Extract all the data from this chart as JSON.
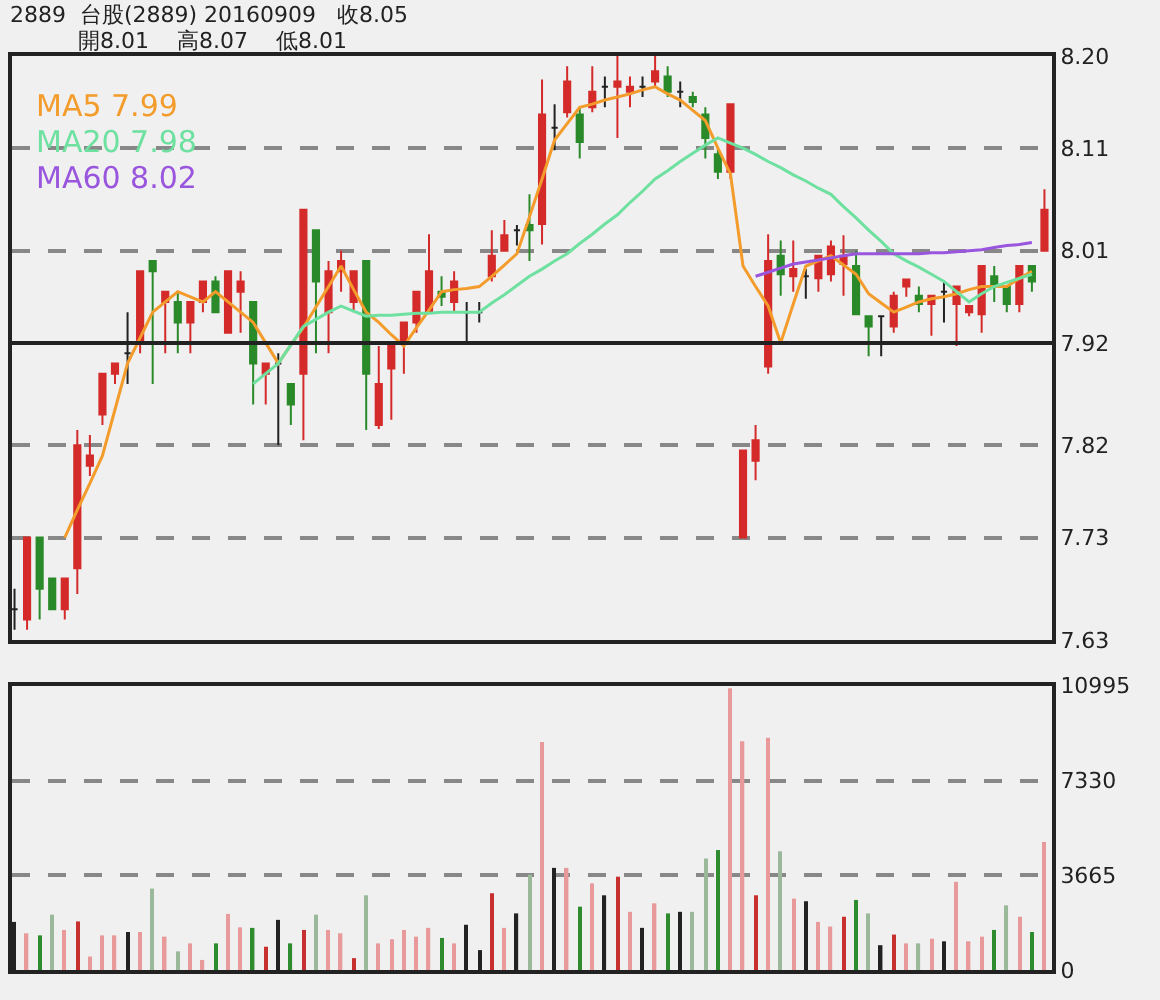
{
  "chart_data": [
    {
      "type": "candlestick",
      "title": "2889  台股(2889) 20160909   收8.05",
      "subtitle": "開8.01    高8.07    低8.01",
      "categories": [
        null,
        null,
        null,
        null,
        null,
        null,
        null,
        null,
        null,
        null,
        null,
        null,
        null,
        null,
        null,
        null,
        null,
        null,
        null,
        null,
        null,
        null,
        null,
        null,
        null,
        null,
        null,
        null,
        null,
        null,
        null,
        null,
        null,
        null,
        null,
        null,
        null,
        null,
        null,
        null,
        null,
        null,
        null,
        null,
        null,
        null,
        null,
        null,
        null,
        null,
        null,
        null,
        null,
        null,
        null,
        null,
        null,
        null,
        null,
        null,
        null,
        null,
        null,
        null,
        null,
        null,
        null,
        null,
        null,
        null,
        null,
        null,
        null,
        null,
        null,
        null,
        null,
        null,
        null,
        null,
        null,
        null,
        null
      ],
      "ohlc": [
        [
          7.66,
          7.68,
          7.64,
          7.66
        ],
        [
          7.65,
          7.73,
          7.64,
          7.73
        ],
        [
          7.73,
          7.73,
          7.65,
          7.68
        ],
        [
          7.69,
          7.69,
          7.66,
          7.66
        ],
        [
          7.66,
          7.69,
          7.65,
          7.69
        ],
        [
          7.7,
          7.835,
          7.675,
          7.82
        ],
        [
          7.8,
          7.83,
          7.79,
          7.81
        ],
        [
          7.85,
          7.89,
          7.84,
          7.89
        ],
        [
          7.89,
          7.9,
          7.88,
          7.9
        ],
        [
          7.91,
          7.95,
          7.88,
          7.91
        ],
        [
          7.92,
          7.99,
          7.91,
          7.99
        ],
        [
          8.0,
          8.0,
          7.88,
          7.99
        ],
        [
          7.96,
          7.97,
          7.91,
          7.97
        ],
        [
          7.96,
          7.97,
          7.91,
          7.94
        ],
        [
          7.94,
          7.96,
          7.91,
          7.96
        ],
        [
          7.96,
          7.98,
          7.95,
          7.98
        ],
        [
          7.98,
          7.985,
          7.95,
          7.95
        ],
        [
          7.93,
          7.99,
          7.93,
          7.99
        ],
        [
          7.97,
          7.99,
          7.93,
          7.98
        ],
        [
          7.96,
          7.96,
          7.86,
          7.9
        ],
        [
          7.89,
          7.9,
          7.86,
          7.9
        ],
        [
          7.9,
          7.91,
          7.82,
          7.9
        ],
        [
          7.88,
          7.88,
          7.84,
          7.86
        ],
        [
          7.89,
          8.05,
          7.825,
          8.05
        ],
        [
          8.03,
          8.03,
          7.91,
          7.98
        ],
        [
          7.95,
          8.0,
          7.91,
          7.99
        ],
        [
          7.99,
          8.01,
          7.97,
          8.0
        ],
        [
          7.96,
          7.99,
          7.95,
          7.99
        ],
        [
          8.0,
          8.0,
          7.835,
          7.89
        ],
        [
          7.84,
          7.917,
          7.836,
          7.88
        ],
        [
          7.895,
          7.92,
          7.845,
          7.917
        ],
        [
          7.92,
          7.94,
          7.89,
          7.94
        ],
        [
          7.94,
          7.97,
          7.93,
          7.97
        ],
        [
          7.95,
          8.026,
          7.95,
          7.99
        ],
        [
          7.97,
          7.985,
          7.956,
          7.965
        ],
        [
          7.96,
          7.99,
          7.95,
          7.98
        ],
        [
          7.95,
          7.96,
          7.92,
          7.95
        ],
        [
          7.95,
          7.96,
          7.94,
          7.95
        ],
        [
          7.985,
          8.03,
          7.98,
          8.005
        ],
        [
          8.01,
          8.04,
          8.01,
          8.025
        ],
        [
          8.03,
          8.035,
          8.015,
          8.03
        ],
        [
          8.035,
          8.065,
          8.0,
          8.03
        ],
        [
          8.036,
          8.177,
          8.016,
          8.143
        ],
        [
          8.13,
          8.153,
          8.108,
          8.13
        ],
        [
          8.145,
          8.19,
          8.14,
          8.175
        ],
        [
          8.143,
          8.15,
          8.1,
          8.116
        ],
        [
          8.15,
          8.19,
          8.145,
          8.165
        ],
        [
          8.17,
          8.18,
          8.15,
          8.17
        ],
        [
          8.17,
          8.2,
          8.12,
          8.175
        ],
        [
          8.165,
          8.18,
          8.15,
          8.17
        ],
        [
          8.17,
          8.18,
          8.16,
          8.17
        ],
        [
          8.175,
          8.2,
          8.17,
          8.185
        ],
        [
          8.18,
          8.19,
          8.16,
          8.165
        ],
        [
          8.165,
          8.175,
          8.15,
          8.165
        ],
        [
          8.16,
          8.165,
          8.15,
          8.155
        ],
        [
          8.143,
          8.15,
          8.1,
          8.12
        ],
        [
          8.104,
          8.11,
          8.08,
          8.087
        ],
        [
          8.087,
          8.153,
          8.08,
          8.153
        ],
        [
          7.73,
          7.815,
          7.73,
          7.815
        ],
        [
          7.805,
          7.84,
          7.786,
          7.825
        ],
        [
          7.897,
          8.026,
          7.89,
          8.0
        ],
        [
          8.005,
          8.02,
          7.966,
          7.987
        ],
        [
          7.985,
          8.02,
          7.97,
          7.992
        ],
        [
          7.985,
          7.992,
          7.963,
          7.985
        ],
        [
          7.983,
          8.005,
          7.97,
          8.005
        ],
        [
          7.987,
          8.02,
          7.98,
          8.014
        ],
        [
          7.997,
          8.025,
          7.966,
          8.005
        ],
        [
          7.995,
          8.01,
          7.948,
          7.948
        ],
        [
          7.946,
          7.946,
          7.907,
          7.936
        ],
        [
          7.946,
          7.946,
          7.907,
          7.946
        ],
        [
          7.936,
          7.97,
          7.93,
          7.966
        ],
        [
          7.975,
          7.982,
          7.965,
          7.982
        ],
        [
          7.966,
          7.975,
          7.95,
          7.958
        ],
        [
          7.958,
          7.966,
          7.927,
          7.966
        ],
        [
          7.97,
          7.98,
          7.94,
          7.97
        ],
        [
          7.958,
          7.975,
          7.917,
          7.975
        ],
        [
          7.95,
          7.956,
          7.946,
          7.956
        ],
        [
          7.948,
          7.995,
          7.93,
          7.995
        ],
        [
          7.985,
          7.995,
          7.96,
          7.975
        ],
        [
          7.975,
          7.975,
          7.95,
          7.958
        ],
        [
          7.958,
          7.995,
          7.95,
          7.995
        ],
        [
          7.995,
          7.995,
          7.97,
          7.98
        ],
        [
          8.01,
          8.07,
          8.01,
          8.05
        ]
      ],
      "colors": [
        "#222222",
        "#d42a2a",
        "#2a8a2a",
        "#2a8a2a",
        "#d42a2a",
        "#d42a2a",
        "#d42a2a",
        "#d42a2a",
        "#d42a2a",
        "#222222",
        "#d42a2a",
        "#2a8a2a",
        "#d42a2a",
        "#2a8a2a",
        "#d42a2a",
        "#d42a2a",
        "#2a8a2a",
        "#d42a2a",
        "#d42a2a",
        "#2a8a2a",
        "#d42a2a",
        "#222222",
        "#2a8a2a",
        "#d42a2a",
        "#2a8a2a",
        "#d42a2a",
        "#d42a2a",
        "#d42a2a",
        "#2a8a2a",
        "#d42a2a",
        "#d42a2a",
        "#d42a2a",
        "#d42a2a",
        "#d42a2a",
        "#2a8a2a",
        "#d42a2a",
        "#222222",
        "#222222",
        "#d42a2a",
        "#d42a2a",
        "#222222",
        "#2a8a2a",
        "#d42a2a",
        "#222222",
        "#d42a2a",
        "#2a8a2a",
        "#d42a2a",
        "#222222",
        "#d42a2a",
        "#d42a2a",
        "#222222",
        "#d42a2a",
        "#2a8a2a",
        "#222222",
        "#2a8a2a",
        "#2a8a2a",
        "#2a8a2a",
        "#d42a2a",
        "#d42a2a",
        "#d42a2a",
        "#d42a2a",
        "#2a8a2a",
        "#d42a2a",
        "#222222",
        "#d42a2a",
        "#d42a2a",
        "#d42a2a",
        "#2a8a2a",
        "#2a8a2a",
        "#222222",
        "#d42a2a",
        "#d42a2a",
        "#2a8a2a",
        "#d42a2a",
        "#222222",
        "#d42a2a",
        "#d42a2a",
        "#d42a2a",
        "#2a8a2a",
        "#2a8a2a",
        "#d42a2a",
        "#2a8a2a",
        "#d42a2a"
      ],
      "series": [
        {
          "type": "line",
          "name": "MA5 7.99",
          "color": "#f39c2b",
          "values": [
            null,
            null,
            null,
            null,
            7.73,
            7.757,
            7.783,
            7.81,
            7.855,
            7.9,
            7.925,
            7.95,
            7.96,
            7.97,
            7.965,
            7.96,
            7.97,
            7.96,
            7.95,
            7.94,
            7.92,
            7.9,
            7.918,
            7.935,
            7.955,
            7.975,
            7.995,
            7.972,
            7.95,
            7.94,
            7.928,
            7.917,
            7.935,
            7.952,
            7.97,
            7.972,
            7.973,
            7.975,
            7.985,
            7.996,
            8.007,
            8.043,
            8.08,
            8.118,
            8.134,
            8.15,
            8.153,
            8.157,
            8.16,
            8.163,
            8.167,
            8.17,
            8.163,
            8.157,
            8.147,
            8.137,
            8.11,
            8.085,
            7.995,
            7.975,
            7.956,
            7.92,
            7.958,
            7.995,
            8.0,
            8.005,
            7.996,
            7.987,
            7.968,
            7.959,
            7.95,
            7.955,
            7.96,
            7.963,
            7.965,
            7.968,
            7.972,
            7.975,
            7.975,
            7.975,
            7.983,
            7.99,
            null
          ]
        },
        {
          "type": "line",
          "name": "MA20 7.98",
          "color": "#6ee0a0",
          "values": [
            null,
            null,
            null,
            null,
            null,
            null,
            null,
            null,
            null,
            null,
            null,
            null,
            null,
            null,
            null,
            null,
            null,
            null,
            null,
            7.88,
            7.89,
            7.9,
            7.918,
            7.936,
            7.943,
            7.95,
            7.956,
            7.951,
            7.946,
            7.947,
            7.947,
            7.948,
            7.949,
            7.949,
            7.95,
            7.95,
            7.95,
            7.95,
            7.959,
            7.967,
            7.976,
            7.985,
            7.992,
            8.0,
            8.007,
            8.017,
            8.026,
            8.036,
            8.045,
            8.057,
            8.068,
            8.08,
            8.088,
            8.097,
            8.105,
            8.113,
            8.12,
            8.115,
            8.11,
            8.104,
            8.097,
            8.091,
            8.084,
            8.078,
            8.071,
            8.065,
            8.053,
            8.042,
            8.03,
            8.019,
            8.007,
            8.0,
            7.994,
            7.987,
            7.98,
            7.97,
            7.96,
            7.968,
            7.975,
            7.979,
            7.983,
            7.987,
            null
          ]
        },
        {
          "type": "line",
          "name": "MA60 8.02",
          "color": "#9955dd",
          "values": [
            null,
            null,
            null,
            null,
            null,
            null,
            null,
            null,
            null,
            null,
            null,
            null,
            null,
            null,
            null,
            null,
            null,
            null,
            null,
            null,
            null,
            null,
            null,
            null,
            null,
            null,
            null,
            null,
            null,
            null,
            null,
            null,
            null,
            null,
            null,
            null,
            null,
            null,
            null,
            null,
            null,
            null,
            null,
            null,
            null,
            null,
            null,
            null,
            null,
            null,
            null,
            null,
            null,
            null,
            null,
            null,
            null,
            null,
            null,
            7.985,
            7.989,
            7.993,
            7.997,
            7.999,
            8.001,
            8.003,
            8.005,
            8.007,
            8.007,
            8.007,
            8.007,
            8.007,
            8.007,
            8.008,
            8.008,
            8.009,
            8.01,
            8.011,
            8.013,
            8.015,
            8.016,
            8.018,
            null
          ]
        }
      ],
      "ylim": [
        7.63,
        8.2
      ],
      "yticks": [
        7.63,
        7.73,
        7.82,
        7.92,
        8.01,
        8.11,
        {
          "value": 8.2,
          "label": "8.20"
        }
      ],
      "grid": "y",
      "legend": "top left",
      "line_style": "solid",
      "marker": "none",
      "ref_lines": [
        {
          "axis": "y",
          "value": 7.92,
          "color": "#222222"
        }
      ]
    },
    {
      "type": "bar",
      "categories": [
        null,
        null,
        null,
        null,
        null,
        null,
        null,
        null,
        null,
        null,
        null,
        null,
        null,
        null,
        null,
        null,
        null,
        null,
        null,
        null,
        null,
        null,
        null,
        null,
        null,
        null,
        null,
        null,
        null,
        null,
        null,
        null,
        null,
        null,
        null,
        null,
        null,
        null,
        null,
        null,
        null,
        null,
        null,
        null,
        null,
        null,
        null,
        null,
        null,
        null,
        null,
        null,
        null,
        null,
        null,
        null,
        null,
        null,
        null,
        null,
        null,
        null,
        null,
        null,
        null,
        null,
        null,
        null,
        null,
        null,
        null,
        null,
        null,
        null,
        null,
        null,
        null,
        null,
        null,
        null,
        null,
        null,
        null
      ],
      "values": [
        1860,
        1420,
        1340,
        2140,
        1550,
        1880,
        520,
        1340,
        1340,
        1470,
        1470,
        3150,
        1290,
        720,
        1030,
        390,
        1030,
        2170,
        1650,
        1630,
        900,
        1940,
        1030,
        1550,
        2140,
        1550,
        1420,
        460,
        2890,
        1030,
        1190,
        1550,
        1290,
        1630,
        1240,
        1030,
        1750,
        770,
        2970,
        1630,
        2190,
        3690,
        8820,
        3950,
        3950,
        2450,
        3350,
        2890,
        3610,
        2250,
        1630,
        2580,
        2190,
        2250,
        2250,
        4310,
        4640,
        10900,
        8850,
        2890,
        8980,
        4590,
        2760,
        2660,
        1860,
        1680,
        2060,
        2710,
        2190,
        960,
        1370,
        1030,
        1030,
        1210,
        1110,
        3410,
        1110,
        1290,
        1550,
        2500,
        2060,
        1470,
        4950
      ],
      "colors": [
        "#222222",
        "#e89a9a",
        "#2e8b2e",
        "#9ab89a",
        "#e89a9a",
        "#c83030",
        "#e89a9a",
        "#e89a9a",
        "#e89a9a",
        "#222222",
        "#e89a9a",
        "#9ab89a",
        "#e89a9a",
        "#9ab89a",
        "#e89a9a",
        "#e89a9a",
        "#2e8b2e",
        "#e89a9a",
        "#e89a9a",
        "#2e8b2e",
        "#c83030",
        "#222222",
        "#2e8b2e",
        "#c83030",
        "#9ab89a",
        "#e89a9a",
        "#e89a9a",
        "#c83030",
        "#9ab89a",
        "#e89a9a",
        "#e89a9a",
        "#e89a9a",
        "#e89a9a",
        "#e89a9a",
        "#2e8b2e",
        "#e89a9a",
        "#222222",
        "#222222",
        "#c83030",
        "#e89a9a",
        "#222222",
        "#9ab89a",
        "#e89a9a",
        "#222222",
        "#e89a9a",
        "#2e8b2e",
        "#e89a9a",
        "#222222",
        "#c83030",
        "#e89a9a",
        "#222222",
        "#e89a9a",
        "#2e8b2e",
        "#222222",
        "#9ab89a",
        "#9ab89a",
        "#2e8b2e",
        "#e89a9a",
        "#e89a9a",
        "#c83030",
        "#e89a9a",
        "#9ab89a",
        "#e89a9a",
        "#222222",
        "#e89a9a",
        "#e89a9a",
        "#c83030",
        "#2e8b2e",
        "#9ab89a",
        "#222222",
        "#c83030",
        "#e89a9a",
        "#9ab89a",
        "#e89a9a",
        "#222222",
        "#e89a9a",
        "#e89a9a",
        "#e89a9a",
        "#2e8b2e",
        "#9ab89a",
        "#e89a9a",
        "#2e8b2e",
        "#e89a9a"
      ],
      "ylim": [
        0,
        10995
      ],
      "yticks": [
        0,
        3665,
        7330,
        10995
      ],
      "grid": "y"
    }
  ]
}
